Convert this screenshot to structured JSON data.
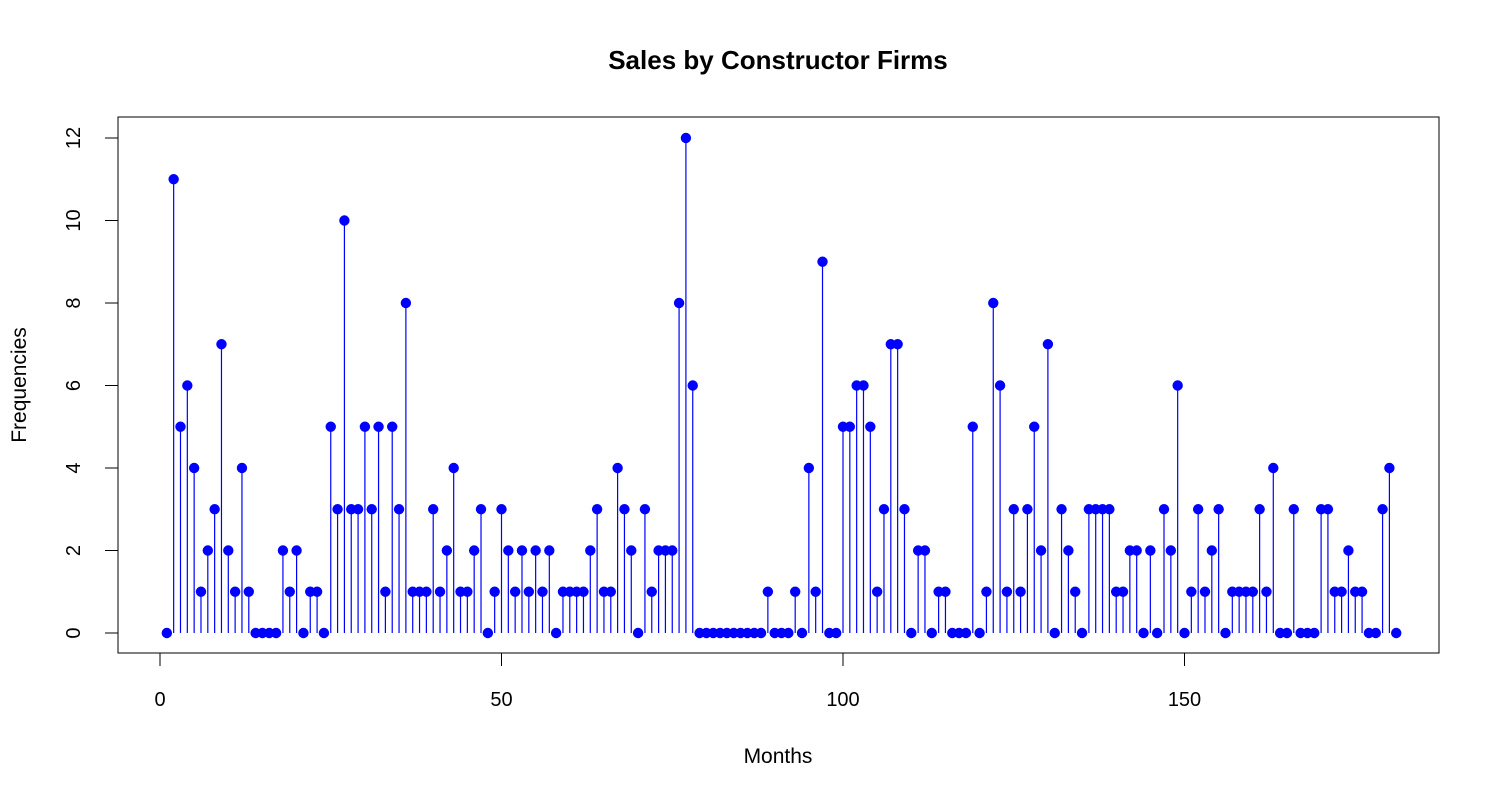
{
  "chart_data": {
    "type": "scatter",
    "style": "stem",
    "title": "Sales by Constructor Firms",
    "xlabel": "Months",
    "ylabel": "Frequencies",
    "xlim": [
      1,
      180
    ],
    "ylim": [
      0,
      12
    ],
    "x_ticks": [
      0,
      50,
      100,
      150
    ],
    "y_ticks": [
      0,
      2,
      4,
      6,
      8,
      10,
      12
    ],
    "grid": false,
    "color": "#0000ff",
    "values": [
      0,
      11,
      5,
      6,
      4,
      1,
      2,
      3,
      7,
      2,
      1,
      4,
      1,
      0,
      0,
      0,
      0,
      2,
      1,
      2,
      0,
      1,
      1,
      0,
      5,
      3,
      10,
      3,
      3,
      5,
      3,
      5,
      1,
      5,
      3,
      8,
      1,
      1,
      1,
      3,
      1,
      2,
      4,
      1,
      1,
      2,
      3,
      0,
      1,
      3,
      2,
      1,
      2,
      1,
      2,
      1,
      2,
      0,
      1,
      1,
      1,
      1,
      2,
      3,
      1,
      1,
      4,
      3,
      2,
      0,
      3,
      1,
      2,
      2,
      2,
      8,
      12,
      6,
      0,
      0,
      0,
      0,
      0,
      0,
      0,
      0,
      0,
      0,
      1,
      0,
      0,
      0,
      1,
      0,
      4,
      1,
      9,
      0,
      0,
      5,
      5,
      6,
      6,
      5,
      1,
      3,
      7,
      7,
      3,
      0,
      2,
      2,
      0,
      1,
      1,
      0,
      0,
      0,
      5,
      0,
      1,
      8,
      6,
      1,
      3,
      1,
      3,
      5,
      2,
      7,
      0,
      3,
      2,
      1,
      0,
      3,
      3,
      3,
      3,
      1,
      1,
      2,
      2,
      0,
      2,
      0,
      3,
      2,
      6,
      0,
      1,
      3,
      1,
      2,
      3,
      0,
      1,
      1,
      1,
      1,
      3,
      1,
      4,
      0,
      0,
      3,
      0,
      0,
      0,
      3,
      3,
      1,
      1,
      2,
      1,
      1,
      0,
      0,
      3,
      4,
      0
    ]
  }
}
